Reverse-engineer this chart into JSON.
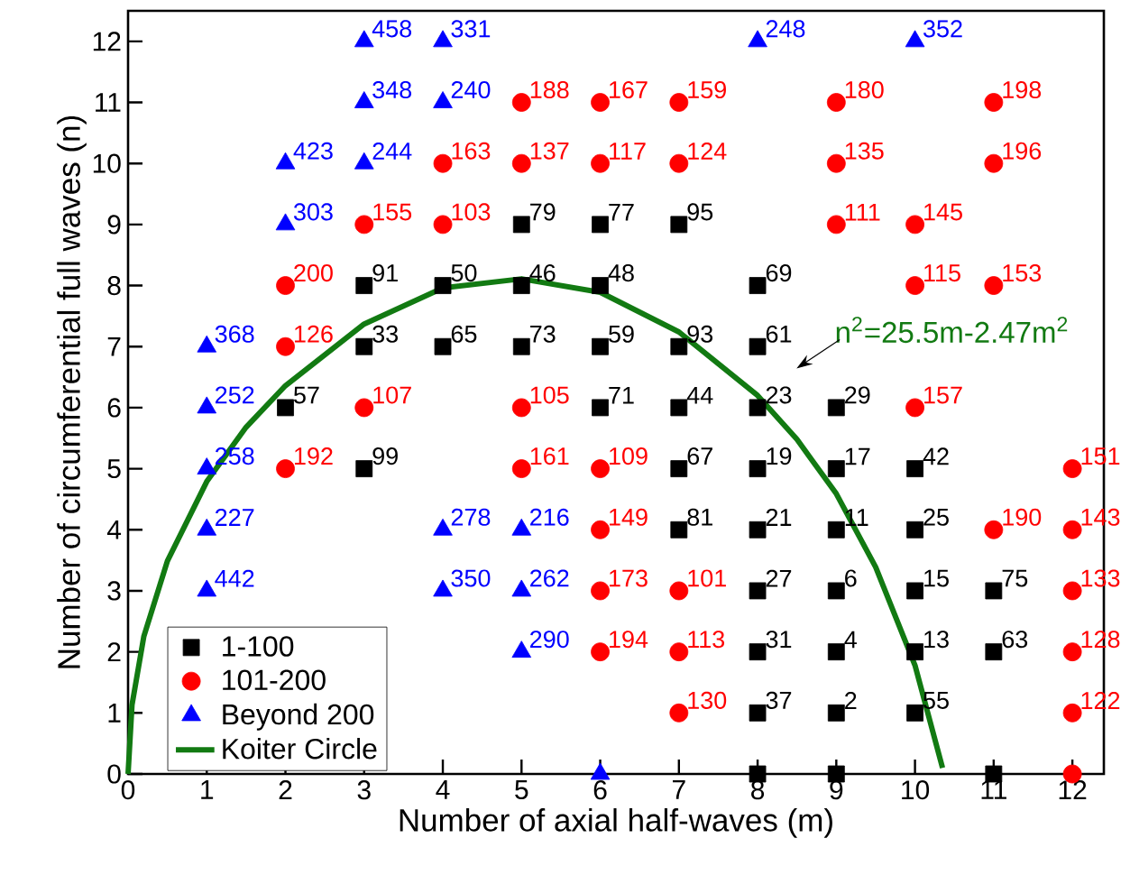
{
  "chart_data": {
    "type": "scatter",
    "xlabel": "Number of axial half-waves (m)",
    "ylabel": "Number of circumferential full waves (n)",
    "xlim": [
      0,
      12.4
    ],
    "ylim": [
      0,
      12.5
    ],
    "xticks": [
      0,
      1,
      2,
      3,
      4,
      5,
      6,
      7,
      8,
      9,
      10,
      11,
      12
    ],
    "yticks": [
      0,
      1,
      2,
      3,
      4,
      5,
      6,
      7,
      8,
      9,
      10,
      11,
      12
    ],
    "legend": "bottom left",
    "series": [
      {
        "name": "1-100",
        "color": "#000000",
        "marker": "square",
        "x": [
          5,
          6,
          7,
          3,
          4,
          5,
          6,
          8,
          3,
          4,
          5,
          6,
          7,
          8,
          2,
          6,
          7,
          8,
          9,
          3,
          7,
          8,
          9,
          10,
          7,
          8,
          9,
          10,
          8,
          9,
          10,
          11,
          8,
          9,
          10,
          11,
          8,
          9,
          10,
          8,
          9,
          11
        ],
        "values": [
          9,
          9,
          9,
          8,
          8,
          8,
          8,
          8,
          7,
          7,
          7,
          7,
          7,
          7,
          6,
          6,
          6,
          6,
          6,
          5,
          5,
          5,
          5,
          5,
          4,
          4,
          4,
          4,
          3,
          3,
          3,
          3,
          2,
          2,
          2,
          2,
          1,
          1,
          1,
          0,
          0,
          0
        ]
      },
      {
        "name": "101-200",
        "color": "#ff0000",
        "marker": "circle",
        "x": [
          5,
          6,
          7,
          9,
          11,
          4,
          5,
          6,
          7,
          9,
          11,
          3,
          4,
          9,
          10,
          2,
          10,
          11,
          2,
          3,
          5,
          10,
          2,
          5,
          6,
          12,
          6,
          11,
          12,
          6,
          7,
          12,
          6,
          7,
          12,
          7,
          12,
          12
        ],
        "values": [
          11,
          11,
          11,
          11,
          11,
          10,
          10,
          10,
          10,
          10,
          10,
          9,
          9,
          9,
          9,
          8,
          8,
          8,
          7,
          6,
          6,
          6,
          5,
          5,
          5,
          5,
          4,
          4,
          4,
          3,
          3,
          3,
          2,
          2,
          2,
          1,
          1,
          0
        ]
      },
      {
        "name": "Beyond 200",
        "color": "#0000ff",
        "marker": "triangle",
        "x": [
          3,
          4,
          8,
          10,
          3,
          4,
          2,
          3,
          2,
          1,
          1,
          1,
          1,
          4,
          5,
          1,
          4,
          5,
          5,
          6
        ],
        "values": [
          12,
          12,
          12,
          12,
          11,
          11,
          10,
          10,
          9,
          7,
          6,
          5,
          4,
          4,
          4,
          3,
          3,
          3,
          2,
          0
        ]
      },
      {
        "name": "Koiter Circle",
        "type": "line",
        "color": "#127a12",
        "marker": "none",
        "x": [
          0,
          0.05,
          0.2,
          0.5,
          1,
          1.5,
          2,
          3,
          4,
          5,
          6,
          7,
          8,
          8.5,
          9,
          9.5,
          10,
          10.35
        ],
        "values": [
          0,
          1.13,
          2.25,
          3.49,
          4.79,
          5.68,
          6.36,
          7.37,
          7.96,
          8.11,
          7.89,
          7.24,
          6.2,
          5.48,
          4.59,
          3.39,
          1.78,
          0.1
        ]
      }
    ],
    "annotations": [
      "n$^{2}$=25.5m-2.47m$^{2}$",
      {
        "text": "79",
        "x": 5,
        "y": 9
      },
      {
        "text": "77",
        "x": 6,
        "y": 9
      },
      {
        "text": "95",
        "x": 7,
        "y": 9
      },
      {
        "text": "91",
        "x": 3,
        "y": 8
      },
      {
        "text": "50",
        "x": 4,
        "y": 8
      },
      {
        "text": "46",
        "x": 5,
        "y": 8
      },
      {
        "text": "48",
        "x": 6,
        "y": 8
      },
      {
        "text": "69",
        "x": 8,
        "y": 8
      },
      {
        "text": "33",
        "x": 3,
        "y": 7
      },
      {
        "text": "65",
        "x": 4,
        "y": 7
      },
      {
        "text": "73",
        "x": 5,
        "y": 7
      },
      {
        "text": "59",
        "x": 6,
        "y": 7
      },
      {
        "text": "93",
        "x": 7,
        "y": 7
      },
      {
        "text": "61",
        "x": 8,
        "y": 7
      },
      {
        "text": "57",
        "x": 2,
        "y": 6
      },
      {
        "text": "71",
        "x": 6,
        "y": 6
      },
      {
        "text": "44",
        "x": 7,
        "y": 6
      },
      {
        "text": "23",
        "x": 8,
        "y": 6
      },
      {
        "text": "29",
        "x": 9,
        "y": 6
      },
      {
        "text": "99",
        "x": 3,
        "y": 5
      },
      {
        "text": "67",
        "x": 7,
        "y": 5
      },
      {
        "text": "19",
        "x": 8,
        "y": 5
      },
      {
        "text": "17",
        "x": 9,
        "y": 5
      },
      {
        "text": "42",
        "x": 10,
        "y": 5
      },
      {
        "text": "81",
        "x": 7,
        "y": 4
      },
      {
        "text": "21",
        "x": 8,
        "y": 4
      },
      {
        "text": "11",
        "x": 9,
        "y": 4
      },
      {
        "text": "25",
        "x": 10,
        "y": 4
      },
      {
        "text": "27",
        "x": 8,
        "y": 3
      },
      {
        "text": "6",
        "x": 9,
        "y": 3
      },
      {
        "text": "15",
        "x": 10,
        "y": 3
      },
      {
        "text": "75",
        "x": 11,
        "y": 3
      },
      {
        "text": "31",
        "x": 8,
        "y": 2
      },
      {
        "text": "4",
        "x": 9,
        "y": 2
      },
      {
        "text": "13",
        "x": 10,
        "y": 2
      },
      {
        "text": "63",
        "x": 11,
        "y": 2
      },
      {
        "text": "37",
        "x": 8,
        "y": 1
      },
      {
        "text": "2",
        "x": 9,
        "y": 1
      },
      {
        "text": "55",
        "x": 10,
        "y": 1
      },
      {
        "text": "188",
        "x": 5,
        "y": 11
      },
      {
        "text": "167",
        "x": 6,
        "y": 11
      },
      {
        "text": "159",
        "x": 7,
        "y": 11
      },
      {
        "text": "180",
        "x": 9,
        "y": 11
      },
      {
        "text": "198",
        "x": 11,
        "y": 11
      },
      {
        "text": "163",
        "x": 4,
        "y": 10
      },
      {
        "text": "137",
        "x": 5,
        "y": 10
      },
      {
        "text": "117",
        "x": 6,
        "y": 10
      },
      {
        "text": "124",
        "x": 7,
        "y": 10
      },
      {
        "text": "135",
        "x": 9,
        "y": 10
      },
      {
        "text": "196",
        "x": 11,
        "y": 10
      },
      {
        "text": "155",
        "x": 3,
        "y": 9
      },
      {
        "text": "103",
        "x": 4,
        "y": 9
      },
      {
        "text": "111",
        "x": 9,
        "y": 9
      },
      {
        "text": "145",
        "x": 10,
        "y": 9
      },
      {
        "text": "200",
        "x": 2,
        "y": 8
      },
      {
        "text": "115",
        "x": 10,
        "y": 8
      },
      {
        "text": "153",
        "x": 11,
        "y": 8
      },
      {
        "text": "126",
        "x": 2,
        "y": 7
      },
      {
        "text": "107",
        "x": 3,
        "y": 6
      },
      {
        "text": "105",
        "x": 5,
        "y": 6
      },
      {
        "text": "157",
        "x": 10,
        "y": 6
      },
      {
        "text": "192",
        "x": 2,
        "y": 5
      },
      {
        "text": "161",
        "x": 5,
        "y": 5
      },
      {
        "text": "109",
        "x": 6,
        "y": 5
      },
      {
        "text": "151",
        "x": 12,
        "y": 5
      },
      {
        "text": "149",
        "x": 6,
        "y": 4
      },
      {
        "text": "190",
        "x": 11,
        "y": 4
      },
      {
        "text": "143",
        "x": 12,
        "y": 4
      },
      {
        "text": "173",
        "x": 6,
        "y": 3
      },
      {
        "text": "101",
        "x": 7,
        "y": 3
      },
      {
        "text": "133",
        "x": 12,
        "y": 3
      },
      {
        "text": "194",
        "x": 6,
        "y": 2
      },
      {
        "text": "113",
        "x": 7,
        "y": 2
      },
      {
        "text": "128",
        "x": 12,
        "y": 2
      },
      {
        "text": "130",
        "x": 7,
        "y": 1
      },
      {
        "text": "122",
        "x": 12,
        "y": 1
      },
      {
        "text": "458",
        "x": 3,
        "y": 12
      },
      {
        "text": "331",
        "x": 4,
        "y": 12
      },
      {
        "text": "248",
        "x": 8,
        "y": 12
      },
      {
        "text": "352",
        "x": 10,
        "y": 12
      },
      {
        "text": "348",
        "x": 3,
        "y": 11
      },
      {
        "text": "240",
        "x": 4,
        "y": 11
      },
      {
        "text": "423",
        "x": 2,
        "y": 10
      },
      {
        "text": "244",
        "x": 3,
        "y": 10
      },
      {
        "text": "303",
        "x": 2,
        "y": 9
      },
      {
        "text": "368",
        "x": 1,
        "y": 7
      },
      {
        "text": "252",
        "x": 1,
        "y": 6
      },
      {
        "text": "258",
        "x": 1,
        "y": 5
      },
      {
        "text": "227",
        "x": 1,
        "y": 4
      },
      {
        "text": "278",
        "x": 4,
        "y": 4
      },
      {
        "text": "216",
        "x": 5,
        "y": 4
      },
      {
        "text": "442",
        "x": 1,
        "y": 3
      },
      {
        "text": "350",
        "x": 4,
        "y": 3
      },
      {
        "text": "262",
        "x": 5,
        "y": 3
      },
      {
        "text": "290",
        "x": 5,
        "y": 2
      }
    ]
  }
}
